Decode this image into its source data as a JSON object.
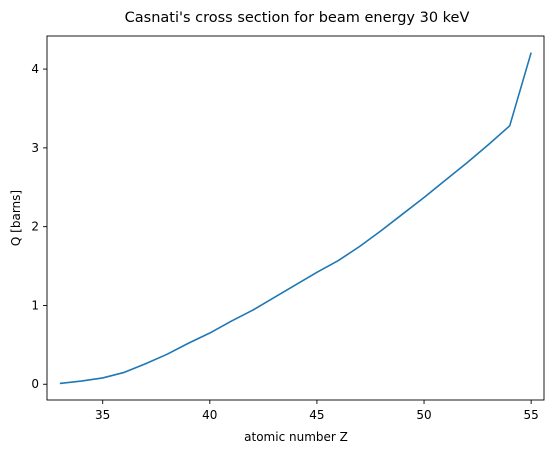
{
  "chart_data": {
    "type": "line",
    "title": "Casnati's cross section for beam energy 30 keV",
    "xlabel": "atomic number Z",
    "ylabel": "Q [barns]",
    "xlim": [
      32.4,
      55.6
    ],
    "ylim": [
      -0.2,
      4.42
    ],
    "xticks": [
      35,
      40,
      45,
      50,
      55
    ],
    "xtick_labels": [
      "35",
      "40",
      "45",
      "50",
      "55"
    ],
    "yticks": [
      0,
      1,
      2,
      3,
      4
    ],
    "ytick_labels": [
      "0",
      "1",
      "2",
      "3",
      "4"
    ],
    "grid": false,
    "line_color": "#1f77b4",
    "series": [
      {
        "x": [
          33,
          34,
          35,
          36,
          37,
          38,
          39,
          40,
          41,
          42,
          43,
          44,
          45,
          46,
          47,
          48,
          49,
          50,
          51,
          52,
          53,
          54,
          55
        ],
        "values": [
          0.01,
          0.04,
          0.08,
          0.15,
          0.26,
          0.38,
          0.52,
          0.65,
          0.8,
          0.94,
          1.1,
          1.26,
          1.42,
          1.57,
          1.75,
          1.95,
          2.16,
          2.37,
          2.59,
          2.81,
          3.04,
          3.28,
          4.21
        ]
      }
    ]
  }
}
